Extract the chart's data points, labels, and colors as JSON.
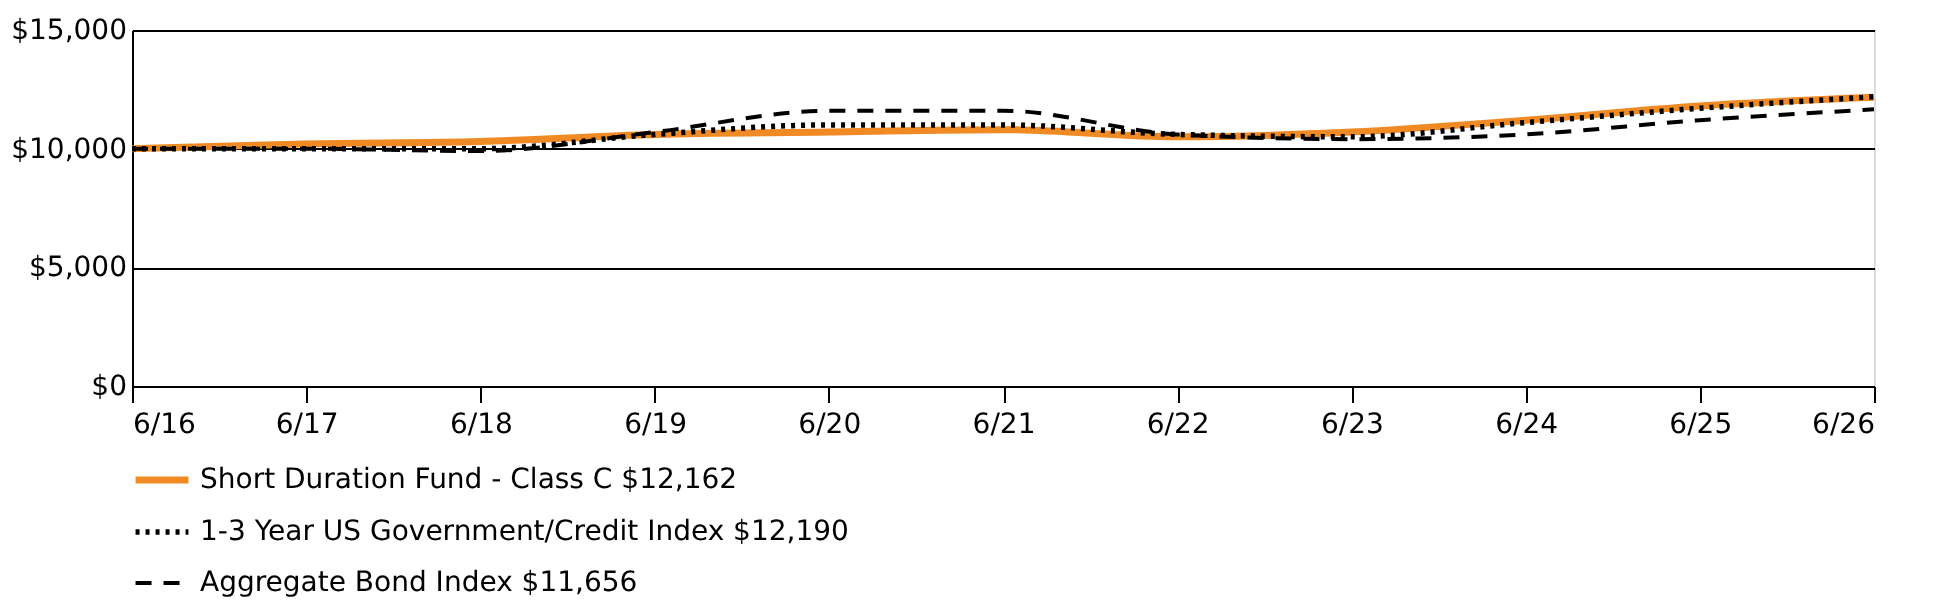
{
  "chart_data": {
    "type": "line",
    "categories": [
      "6/16",
      "6/17",
      "6/18",
      "6/19",
      "6/20",
      "6/21",
      "6/22",
      "6/23",
      "6/24",
      "6/25",
      "6/26"
    ],
    "series": [
      {
        "name": "Short Duration Fund - Class C $12,162",
        "color": "#f08a24",
        "line_style": "solid",
        "values": [
          10000,
          10200,
          10300,
          10600,
          10700,
          10800,
          10500,
          10700,
          11200,
          11800,
          12162
        ]
      },
      {
        "name": "1-3 Year US Government/Credit Index $12,190",
        "color": "#000000",
        "line_style": "dotted",
        "values": [
          10000,
          10000,
          10000,
          10600,
          11000,
          11000,
          10600,
          10500,
          11100,
          11700,
          12190
        ]
      },
      {
        "name": "Aggregate Bond Index $11,656",
        "color": "#000000",
        "line_style": "dashed",
        "values": [
          10000,
          10000,
          9900,
          10700,
          11600,
          11600,
          10600,
          10400,
          10600,
          11200,
          11656
        ]
      }
    ],
    "ylim": [
      0,
      15000
    ],
    "yticks": [
      {
        "value": 0,
        "label": "$0"
      },
      {
        "value": 5000,
        "label": "$5,000"
      },
      {
        "value": 10000,
        "label": "$10,000"
      },
      {
        "value": 15000,
        "label": "$15,000"
      }
    ],
    "grid": "y",
    "legend": "bottom",
    "marker": "none"
  }
}
